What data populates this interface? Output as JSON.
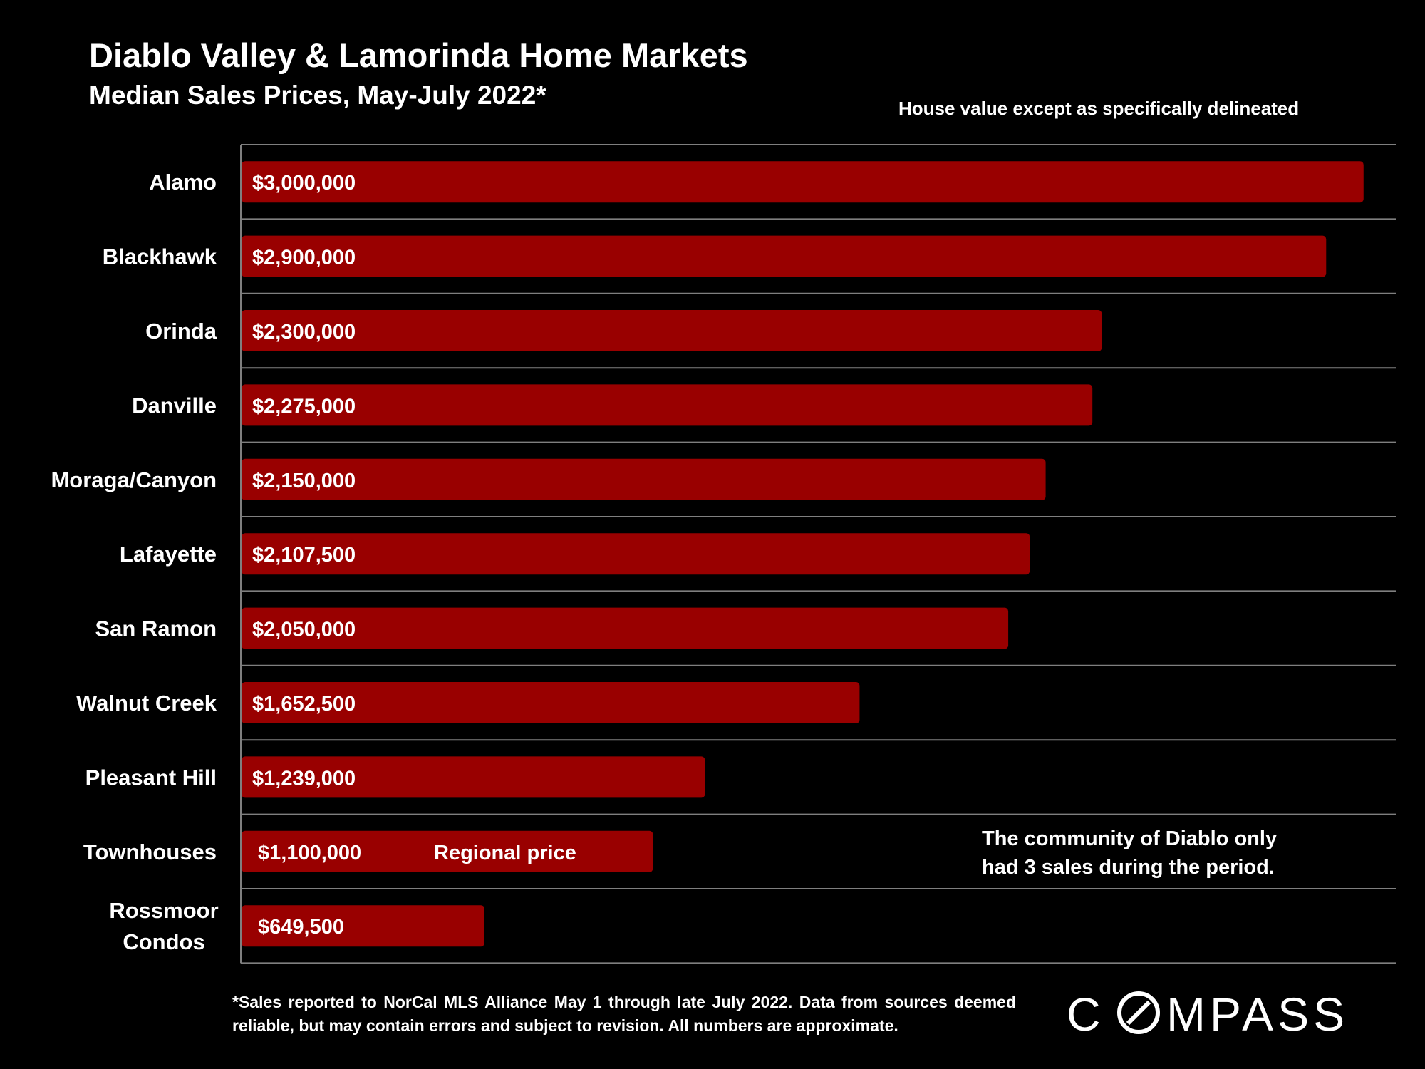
{
  "header": {
    "title": "Diablo Valley & Lamorinda Home Markets",
    "subtitle": "Median Sales Prices, May-July 2022*",
    "note": "House value except as specifically delineated"
  },
  "annotation": {
    "line1": "The community of Diablo only",
    "line2": "had 3 sales during the period."
  },
  "footnote": "*Sales reported to NorCal MLS Alliance May 1 through late July 2022. Data from sources deemed reliable, but may contain errors and subject to revision. All numbers are approximate.",
  "logo": {
    "text": "COMPASS"
  },
  "colors": {
    "bar": "#990000",
    "background": "#000000",
    "gridline": "#7f7f7f",
    "text": "#ffffff"
  },
  "chart_data": {
    "type": "bar",
    "orientation": "horizontal",
    "categories": [
      "Alamo",
      "Blackhawk",
      "Orinda",
      "Danville",
      "Moraga/Canyon",
      "Lafayette",
      "San Ramon",
      "Walnut Creek",
      "Pleasant Hill",
      "Townhouses",
      "Rossmoor Condos"
    ],
    "values": [
      3000000,
      2900000,
      2300000,
      2275000,
      2150000,
      2107500,
      2050000,
      1652500,
      1239000,
      1100000,
      649500
    ],
    "labels": [
      "$3,000,000",
      "$2,900,000",
      "$2,300,000",
      "$2,275,000",
      "$2,150,000",
      "$2,107,500",
      "$2,050,000",
      "$1,652,500",
      "$1,239,000",
      "$1,100,000",
      "$649,500"
    ],
    "bar_annotations": [
      {
        "category": "Townhouses",
        "text": "Regional price"
      }
    ],
    "xlim": [
      0,
      3090000
    ],
    "grid": true,
    "legend": "none"
  }
}
